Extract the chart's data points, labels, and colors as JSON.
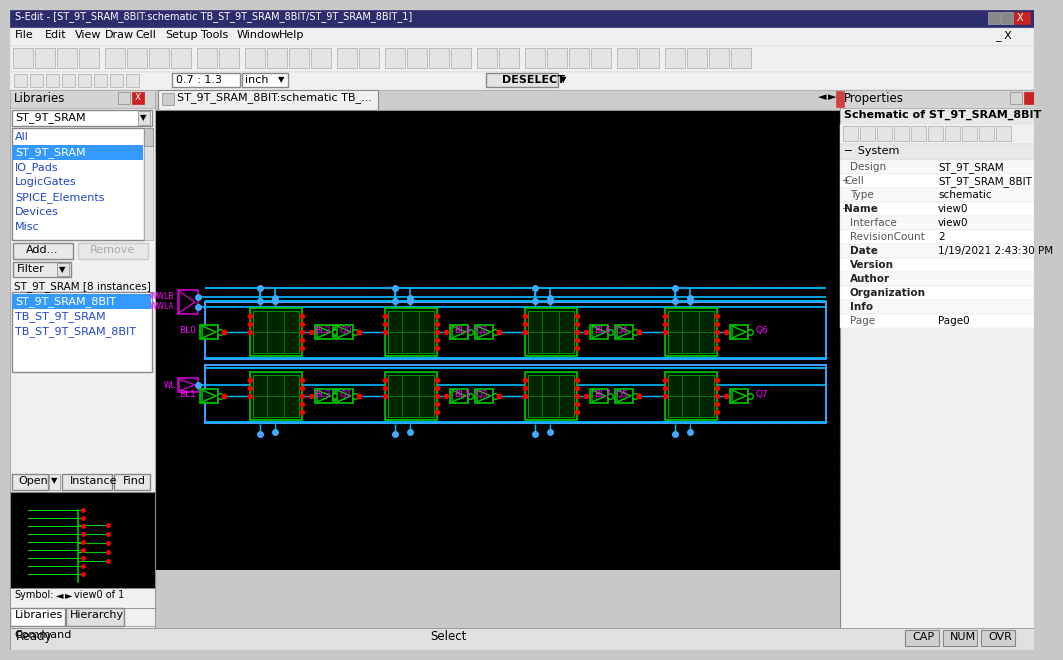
{
  "title_bar": "S-Edit - [ST_9T_SRAM_8BIT:schematic TB_ST_9T_SRAM_8BIT/ST_9T_SRAM_8BIT_1]",
  "menu_items": [
    "File",
    "Edit",
    "View",
    "Draw",
    "Cell",
    "Setup",
    "Tools",
    "Window",
    "Help"
  ],
  "tab_text": "ST_9T_SRAM_8BIT:schematic TB_...",
  "zoom_text": "0.7 : 1.3",
  "zoom_unit": "inch",
  "deselect_text": "DESELECT",
  "lib_panel_title": "Libraries",
  "lib_dropdown": "ST_9T_SRAM",
  "lib_items": [
    "All",
    "ST_9T_SRAM",
    "IO_Pads",
    "LogicGates",
    "SPICE_Elements",
    "Devices",
    "Misc"
  ],
  "lib_selected": "ST_9T_SRAM",
  "btn1": "Add...",
  "btn2": "Remove",
  "filter_text": "Filter",
  "instances_text": "ST_9T_SRAM [8 instances]",
  "cell_items": [
    "ST_9T_SRAM_8BIT",
    "TB_ST_9T_SRAM",
    "TB_ST_9T_SRAM_8BIT"
  ],
  "cell_selected": "ST_9T_SRAM_8BIT",
  "open_btn": "Open",
  "instance_btn": "Instance",
  "find_btn": "Find",
  "props_title": "Properties",
  "props_subtitle": "Schematic of ST_9T_SRAM_8BIT",
  "props_section": "System",
  "props_rows": [
    [
      "Design",
      "ST_9T_SRAM"
    ],
    [
      "Cell",
      "ST_9T_SRAM_8BIT"
    ],
    [
      "Type",
      "schematic"
    ],
    [
      "Name",
      "view0"
    ],
    [
      "Interface",
      "view0"
    ],
    [
      "RevisionCount",
      "2"
    ],
    [
      "Date",
      "1/19/2021 2:43:30 PM"
    ],
    [
      "Version",
      ""
    ],
    [
      "Author",
      ""
    ],
    [
      "Organization",
      ""
    ],
    [
      "Info",
      ""
    ],
    [
      "Page",
      "Page0"
    ]
  ],
  "props_bold_rows": [
    3,
    6,
    7,
    8,
    9,
    10
  ],
  "statusbar_left": "Ready",
  "statusbar_right": "Select",
  "statusbar_caps": "CAP",
  "statusbar_num": "NUM",
  "statusbar_ovr": "OVR",
  "title_bar_color": "#2d2d6e",
  "panel_bg": "#f0f0f0",
  "selected_bg": "#3399ff",
  "schematic_bg": "#000000",
  "wire_blue": "#4488ff",
  "wire_cyan": "#00bbff",
  "cell_green": "#00cc00",
  "label_magenta": "#ff00ff",
  "dot_red": "#ff0000",
  "dot_grid": "#1c1c3c"
}
